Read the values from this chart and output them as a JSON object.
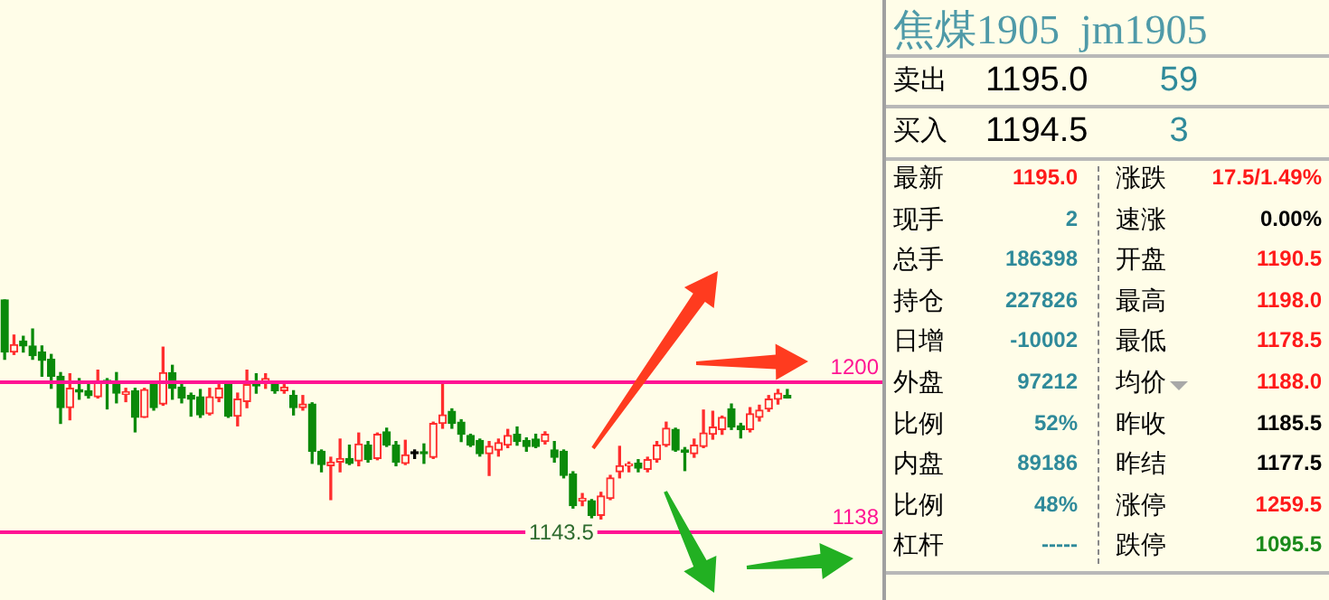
{
  "chart_data": [
    {
      "type": "candlestick",
      "categories": [
        null,
        null,
        null,
        null,
        null,
        null,
        null,
        null,
        null,
        null,
        null,
        null,
        null,
        null,
        null,
        null,
        null,
        null,
        null,
        null,
        null,
        null,
        null,
        null,
        null,
        null,
        null,
        null,
        null,
        null,
        null,
        null,
        null,
        null,
        null,
        null,
        null,
        null,
        null,
        null,
        null,
        null,
        null,
        null,
        null,
        null,
        null,
        null,
        null,
        null,
        null,
        null,
        null,
        null,
        null,
        null,
        null,
        null,
        null,
        null,
        null,
        null,
        null,
        null,
        null,
        null,
        null,
        null,
        null,
        null,
        null,
        null,
        null,
        null,
        null,
        null,
        null,
        null,
        null,
        null,
        null,
        null,
        null,
        null,
        null
      ],
      "ohlc": [
        [
          1234,
          1234,
          1209.5,
          1212.5
        ],
        [
          1212.5,
          1219.5,
          1211.5,
          1215.5
        ],
        [
          1217,
          1219,
          1212.5,
          1215
        ],
        [
          1215,
          1222,
          1209.5,
          1211
        ],
        [
          1212.5,
          1215,
          1202.5,
          1209
        ],
        [
          1209.5,
          1211.5,
          1197.5,
          1202.5
        ],
        [
          1202.5,
          1204,
          1183,
          1189.5
        ],
        [
          1189.5,
          1203.5,
          1184.5,
          1197.5
        ],
        [
          1197,
          1201.5,
          1193,
          1196
        ],
        [
          1196.5,
          1199.5,
          1193.5,
          1194.5
        ],
        [
          1194,
          1205,
          1193.5,
          1200
        ],
        [
          1200.5,
          1201.5,
          1189,
          1200
        ],
        [
          1199,
          1204,
          1191.5,
          1195.5
        ],
        [
          1195,
          1197.5,
          1192,
          1196
        ],
        [
          1196.5,
          1197.5,
          1179.5,
          1185.5
        ],
        [
          1185.5,
          1197.5,
          1185.5,
          1197
        ],
        [
          1199,
          1199.5,
          1188.5,
          1189.5
        ],
        [
          1191,
          1214.5,
          1190.5,
          1204
        ],
        [
          1204,
          1207,
          1193,
          1197.5
        ],
        [
          1198,
          1200,
          1191.5,
          1193.5
        ],
        [
          1194.5,
          1195.5,
          1186,
          1193
        ],
        [
          1194,
          1197,
          1185.5,
          1186.5
        ],
        [
          1187,
          1197.5,
          1186.5,
          1194
        ],
        [
          1193.5,
          1199,
          1192,
          1197.5
        ],
        [
          1199,
          1199.5,
          1185.5,
          1186
        ],
        [
          1186,
          1195.5,
          1182,
          1193
        ],
        [
          1192,
          1205,
          1189.5,
          1199
        ],
        [
          1199.5,
          1203.5,
          1195.5,
          1198.5
        ],
        [
          1200,
          1203.5,
          1197.5,
          1201.5
        ],
        [
          1199.5,
          1200.5,
          1195.5,
          1196.5
        ],
        [
          1196.5,
          1199,
          1195.5,
          1198
        ],
        [
          1194.5,
          1196.5,
          1186.5,
          1189.5
        ],
        [
          1189.5,
          1194.5,
          1188.5,
          1191
        ],
        [
          1191,
          1191.5,
          1166.5,
          1171.5
        ],
        [
          1171.5,
          1172,
          1163,
          1166
        ],
        [
          1165.5,
          1169,
          1151.5,
          1167
        ],
        [
          1167,
          1176.5,
          1163,
          1168.5
        ],
        [
          1168.5,
          1174,
          1166,
          1166.5
        ],
        [
          1167.5,
          1179,
          1165.5,
          1174.5
        ],
        [
          1174,
          1175.5,
          1167,
          1168
        ],
        [
          1168.5,
          1179,
          1168,
          1178.5
        ],
        [
          1179.5,
          1181,
          1173.5,
          1174
        ],
        [
          1174,
          1175.5,
          1165.5,
          1167
        ],
        [
          1166.5,
          1176,
          1166,
          1170
        ],
        [
          1170.5,
          1172,
          1168.5,
          1170.5
        ],
        [
          1171,
          1174.5,
          1166.5,
          1170.5
        ],
        [
          1169,
          1183.5,
          1168.5,
          1183
        ],
        [
          1183,
          1199.5,
          1181,
          1186.5
        ],
        [
          1188,
          1189,
          1181,
          1183
        ],
        [
          1183.5,
          1184.5,
          1175.5,
          1178.5
        ],
        [
          1178,
          1178.5,
          1173.5,
          1174
        ],
        [
          1176,
          1176.5,
          1169.5,
          1170.5
        ],
        [
          1170.5,
          1175.5,
          1161.5,
          1173.5
        ],
        [
          1172,
          1176.5,
          1169.5,
          1175
        ],
        [
          1174,
          1180.5,
          1173,
          1178
        ],
        [
          1178.5,
          1181.5,
          1174,
          1175.5
        ],
        [
          1176,
          1177,
          1171.5,
          1173.5
        ],
        [
          1176.5,
          1178.5,
          1173,
          1173.5
        ],
        [
          1175.5,
          1179.5,
          1174.5,
          1178.5
        ],
        [
          1172,
          1175.5,
          1167,
          1169
        ],
        [
          1171.5,
          1172,
          1160.5,
          1161.5
        ],
        [
          1162,
          1163,
          1148,
          1149
        ],
        [
          1151,
          1154,
          1149,
          1152
        ],
        [
          1151,
          1151.5,
          1144,
          1145
        ],
        [
          1145,
          1154.5,
          1143.5,
          1153
        ],
        [
          1152,
          1161.5,
          1151.5,
          1160.5
        ],
        [
          1163,
          1173.5,
          1160.5,
          1165.5
        ],
        [
          1165.5,
          1167,
          1163,
          1166
        ],
        [
          1166.5,
          1168,
          1163,
          1164.5
        ],
        [
          1164,
          1169,
          1163,
          1168
        ],
        [
          1168,
          1175.5,
          1167,
          1174
        ],
        [
          1174,
          1183.5,
          1173.5,
          1181
        ],
        [
          1180.5,
          1181,
          1171.5,
          1172
        ],
        [
          1172,
          1173,
          1163.5,
          1171
        ],
        [
          1170.5,
          1176.5,
          1169,
          1174
        ],
        [
          1173.5,
          1188.5,
          1173,
          1179
        ],
        [
          1178.5,
          1188,
          1176.5,
          1181.5
        ],
        [
          1180.5,
          1186,
          1178.5,
          1185.5
        ],
        [
          1189,
          1191,
          1180.5,
          1181.5
        ],
        [
          1182,
          1183,
          1177,
          1180.5
        ],
        [
          1180.5,
          1189.5,
          1179.5,
          1187
        ],
        [
          1185.5,
          1190.5,
          1184,
          1188.5
        ],
        [
          1189,
          1194.5,
          1188,
          1193
        ],
        [
          1193,
          1197,
          1191,
          1195.5
        ],
        [
          1194.5,
          1197,
          1193.5,
          1193.5
        ]
      ],
      "colors": [
        "#0a8a0a",
        "#ff2d2d",
        "#0a8a0a",
        "#0a8a0a",
        "#0a8a0a",
        "#0a8a0a",
        "#0a8a0a",
        "#ff2d2d",
        "#0a8a0a",
        "#0a8a0a",
        "#ff2d2d",
        "#0a8a0a",
        "#0a8a0a",
        "#ff2d2d",
        "#0a8a0a",
        "#ff2d2d",
        "#0a8a0a",
        "#ff2d2d",
        "#0a8a0a",
        "#0a8a0a",
        "#0a8a0a",
        "#0a8a0a",
        "#ff2d2d",
        "#ff2d2d",
        "#0a8a0a",
        "#ff2d2d",
        "#ff2d2d",
        "#0a8a0a",
        "#ff2d2d",
        "#0a8a0a",
        "#ff2d2d",
        "#0a8a0a",
        "#ff2d2d",
        "#0a8a0a",
        "#0a8a0a",
        "#ff2d2d",
        "#ff2d2d",
        "#0a8a0a",
        "#ff2d2d",
        "#0a8a0a",
        "#ff2d2d",
        "#0a8a0a",
        "#0a8a0a",
        "#ff2d2d",
        "#000000",
        "#0a8a0a",
        "#ff2d2d",
        "#ff2d2d",
        "#0a8a0a",
        "#0a8a0a",
        "#0a8a0a",
        "#0a8a0a",
        "#ff2d2d",
        "#ff2d2d",
        "#ff2d2d",
        "#0a8a0a",
        "#0a8a0a",
        "#0a8a0a",
        "#ff2d2d",
        "#0a8a0a",
        "#0a8a0a",
        "#0a8a0a",
        "#ff2d2d",
        "#0a8a0a",
        "#ff2d2d",
        "#ff2d2d",
        "#ff2d2d",
        "#ff2d2d",
        "#0a8a0a",
        "#ff2d2d",
        "#ff2d2d",
        "#ff2d2d",
        "#0a8a0a",
        "#0a8a0a",
        "#ff2d2d",
        "#ff2d2d",
        "#ff2d2d",
        "#ff2d2d",
        "#0a8a0a",
        "#0a8a0a",
        "#ff2d2d",
        "#ff2d2d",
        "#ff2d2d",
        "#ff2d2d",
        "#0a8a0a"
      ],
      "ylim": [
        1110,
        1358
      ],
      "tick_labels": false,
      "ref_lines": [
        {
          "axis": "y",
          "value": 1200,
          "label": "1200",
          "color": "#ff1493"
        },
        {
          "axis": "y",
          "value": 1138,
          "label": "1138",
          "color": "#ff1493"
        }
      ],
      "annotations": [
        "1143.5"
      ]
    },
    {
      "type": "other",
      "title": "焦煤1905  jm1905",
      "annotations": [
        "卖出",
        "1195.0",
        "59",
        "买入",
        "1194.5",
        "3",
        "最新",
        "1195.0",
        "涨跌",
        "17.5/1.49%",
        "现手",
        "2",
        "速涨",
        "0.00%",
        "总手",
        "186398",
        "开盘",
        "1190.5",
        "持仓",
        "227826",
        "最高",
        "1198.0",
        "日增",
        "-10002",
        "最低",
        "1178.5",
        "外盘",
        "97212",
        "均价",
        "1188.0",
        "比例",
        "52%",
        "昨收",
        "1185.5",
        "内盘",
        "89186",
        "昨结",
        "1177.5",
        "比例",
        "48%",
        "涨停",
        "1259.5",
        "杠杆",
        "-----",
        "跌停",
        "1095.5"
      ],
      "colors": [
        "#000000",
        "#000000",
        "#2f8a9a",
        "#000000",
        "#000000",
        "#2f8a9a",
        "#000000",
        "#ff1a1a",
        "#000000",
        "#ff1a1a",
        "#000000",
        "#2f8a9a",
        "#000000",
        "#000000",
        "#000000",
        "#2f8a9a",
        "#000000",
        "#ff1a1a",
        "#000000",
        "#2f8a9a",
        "#000000",
        "#ff1a1a",
        "#000000",
        "#2f8a9a",
        "#000000",
        "#ff1a1a",
        "#000000",
        "#2f8a9a",
        "#000000",
        "#ff1a1a",
        "#000000",
        "#2f8a9a",
        "#000000",
        "#000000",
        "#000000",
        "#2f8a9a",
        "#000000",
        "#000000",
        "#000000",
        "#2f8a9a",
        "#000000",
        "#ff1a1a",
        "#000000",
        "#2f8a9a",
        "#000000",
        "#1a8a1a"
      ]
    }
  ]
}
